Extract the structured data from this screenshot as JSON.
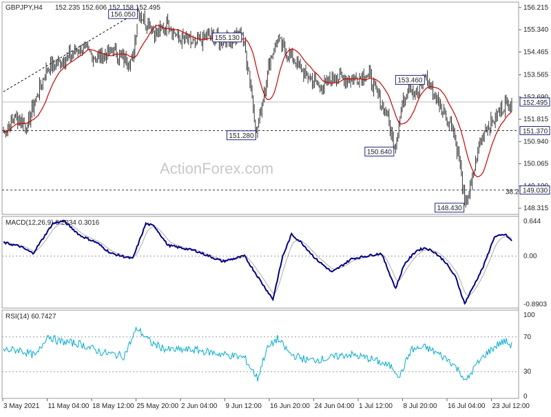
{
  "header": {
    "symbol": "GBPJPY,H4",
    "ohlc": "152.235 152.606 152.158 152.495"
  },
  "watermark": "ActionForex.com",
  "colors": {
    "candle": "#333333",
    "ma": "#cc0000",
    "macd": "#000080",
    "signal": "#aaaaaa",
    "rsi": "#00aacc",
    "label_border": "#1a237e"
  },
  "chart_data": [
    {
      "type": "candlestick",
      "title": "GBPJPY,H4",
      "ylim": [
        148.1,
        156.4
      ],
      "y_ticks": [
        "156.215",
        "155.340",
        "154.465",
        "153.565",
        "152.690",
        "151.815",
        "150.940",
        "150.065",
        "149.190",
        "148.315"
      ],
      "x_ticks": [
        "3 May 2021",
        "11 May 04:00",
        "18 May 12:00",
        "25 May 20:00",
        "2 Jun 04:00",
        "9 Jun 12:00",
        "16 Jun 20:00",
        "24 Jun 04:00",
        "1 Jul 12:00",
        "8 Jul 20:00",
        "16 Jul 04:00",
        "23 Jul 12:00"
      ],
      "anchors": [
        [
          0,
          151.3
        ],
        [
          10,
          151.9
        ],
        [
          22,
          151.6
        ],
        [
          30,
          152.7
        ],
        [
          40,
          153.8
        ],
        [
          55,
          154.1
        ],
        [
          70,
          154.7
        ],
        [
          85,
          154.2
        ],
        [
          100,
          154.5
        ],
        [
          112,
          154.1
        ],
        [
          118,
          154.2
        ],
        [
          123,
          156.05
        ],
        [
          133,
          155.5
        ],
        [
          140,
          155.2
        ],
        [
          150,
          155.6
        ],
        [
          160,
          155.0
        ],
        [
          175,
          154.8
        ],
        [
          188,
          155.1
        ],
        [
          198,
          154.9
        ],
        [
          210,
          155.0
        ],
        [
          218,
          155.13
        ],
        [
          224,
          153.7
        ],
        [
          231,
          151.28
        ],
        [
          238,
          152.9
        ],
        [
          244,
          154.3
        ],
        [
          250,
          154.9
        ],
        [
          262,
          154.3
        ],
        [
          276,
          153.6
        ],
        [
          290,
          153.0
        ],
        [
          302,
          153.5
        ],
        [
          318,
          153.4
        ],
        [
          333,
          153.6
        ],
        [
          342,
          152.7
        ],
        [
          350,
          152.0
        ],
        [
          357,
          150.64
        ],
        [
          363,
          152.2
        ],
        [
          370,
          153.2
        ],
        [
          378,
          152.8
        ],
        [
          385,
          153.46
        ],
        [
          395,
          152.6
        ],
        [
          403,
          152.0
        ],
        [
          410,
          151.5
        ],
        [
          417,
          150.0
        ],
        [
          421,
          148.43
        ],
        [
          427,
          149.2
        ],
        [
          433,
          150.6
        ],
        [
          440,
          151.5
        ],
        [
          447,
          151.7
        ],
        [
          453,
          152.1
        ],
        [
          459,
          152.5
        ],
        [
          464,
          152.495
        ]
      ],
      "levels": [
        {
          "value": 152.495,
          "label": "152.495",
          "style": "solid"
        },
        {
          "value": 151.37,
          "label": "151.370",
          "style": "dashed"
        },
        {
          "value": 149.03,
          "label": "149.030",
          "style": "dashed",
          "note": "38.2"
        }
      ],
      "annotations": [
        {
          "label": "156.050",
          "index": 123,
          "value": 156.05
        },
        {
          "label": "155.130",
          "index": 218,
          "value": 155.13
        },
        {
          "label": "151.280",
          "index": 231,
          "value": 151.28
        },
        {
          "label": "153.460",
          "index": 385,
          "value": 153.46
        },
        {
          "label": "150.640",
          "index": 357,
          "value": 150.64
        },
        {
          "label": "148.430",
          "index": 421,
          "value": 148.43
        }
      ],
      "trendline": [
        [
          0,
          152.9
        ],
        [
          123,
          156.05
        ]
      ]
    },
    {
      "type": "line",
      "title": "MACD(12,26,9) 0.2834 0.3016",
      "ylim": [
        -0.95,
        0.72
      ],
      "y_ticks": [
        "0.644",
        "0.00",
        "-0.8903"
      ],
      "anchors": [
        [
          0,
          0.25
        ],
        [
          15,
          0.18
        ],
        [
          27,
          0.05
        ],
        [
          45,
          0.6
        ],
        [
          55,
          0.65
        ],
        [
          70,
          0.38
        ],
        [
          85,
          0.25
        ],
        [
          98,
          0.05
        ],
        [
          118,
          -0.05
        ],
        [
          130,
          0.6
        ],
        [
          138,
          0.55
        ],
        [
          150,
          0.2
        ],
        [
          175,
          0.1
        ],
        [
          200,
          -0.1
        ],
        [
          220,
          0.0
        ],
        [
          236,
          -0.5
        ],
        [
          246,
          -0.8
        ],
        [
          255,
          0.0
        ],
        [
          263,
          0.4
        ],
        [
          272,
          0.25
        ],
        [
          285,
          -0.05
        ],
        [
          300,
          -0.3
        ],
        [
          318,
          -0.05
        ],
        [
          345,
          0.05
        ],
        [
          358,
          -0.6
        ],
        [
          366,
          -0.15
        ],
        [
          377,
          0.1
        ],
        [
          385,
          0.15
        ],
        [
          393,
          0.08
        ],
        [
          403,
          -0.1
        ],
        [
          413,
          -0.4
        ],
        [
          421,
          -0.88
        ],
        [
          428,
          -0.6
        ],
        [
          438,
          -0.2
        ],
        [
          448,
          0.35
        ],
        [
          458,
          0.4
        ],
        [
          464,
          0.28
        ]
      ]
    },
    {
      "type": "line",
      "title": "RSI(14) 60.7427",
      "ylim": [
        0,
        100
      ],
      "y_ticks": [
        "100",
        "70",
        "30",
        "0"
      ],
      "levels": [
        70,
        30
      ],
      "anchors": [
        [
          0,
          55
        ],
        [
          15,
          55
        ],
        [
          30,
          48
        ],
        [
          40,
          72
        ],
        [
          50,
          65
        ],
        [
          70,
          62
        ],
        [
          90,
          52
        ],
        [
          110,
          48
        ],
        [
          122,
          80
        ],
        [
          135,
          63
        ],
        [
          150,
          55
        ],
        [
          175,
          55
        ],
        [
          200,
          50
        ],
        [
          220,
          46
        ],
        [
          232,
          22
        ],
        [
          240,
          55
        ],
        [
          250,
          68
        ],
        [
          262,
          50
        ],
        [
          278,
          43
        ],
        [
          295,
          45
        ],
        [
          315,
          50
        ],
        [
          335,
          45
        ],
        [
          355,
          35
        ],
        [
          362,
          25
        ],
        [
          372,
          55
        ],
        [
          385,
          58
        ],
        [
          395,
          52
        ],
        [
          408,
          42
        ],
        [
          418,
          28
        ],
        [
          422,
          18
        ],
        [
          430,
          35
        ],
        [
          440,
          50
        ],
        [
          452,
          62
        ],
        [
          458,
          65
        ],
        [
          464,
          60
        ]
      ]
    }
  ]
}
